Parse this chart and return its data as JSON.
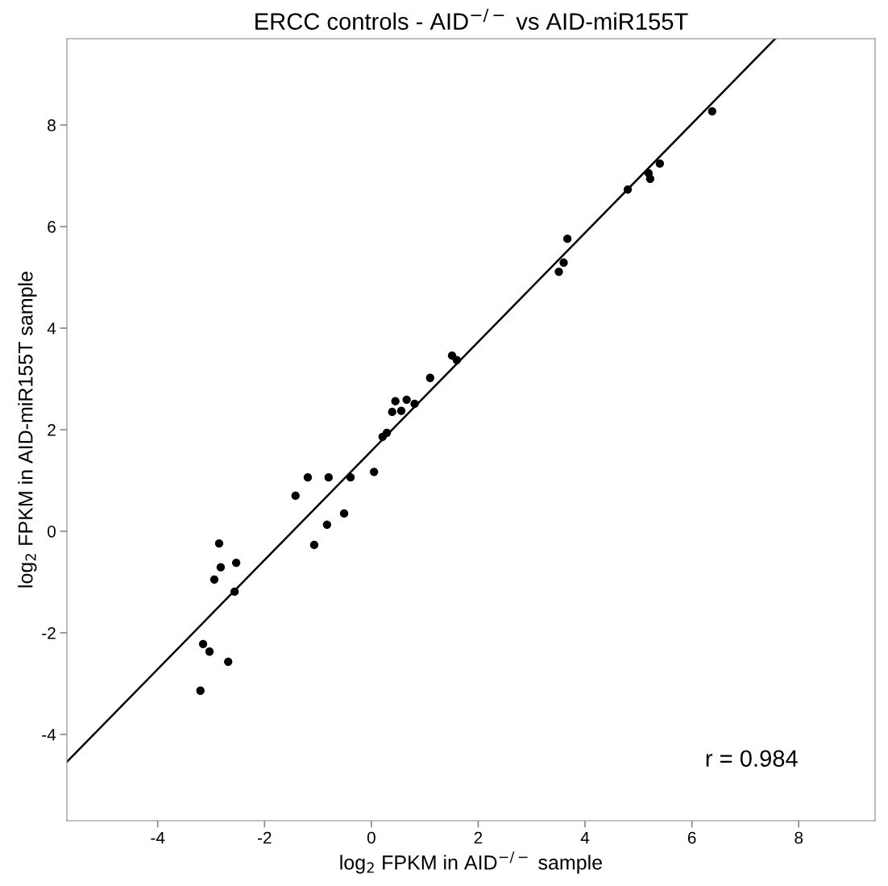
{
  "chart_data": {
    "type": "scatter",
    "title": "ERCC controls - AID$^{−/−}$ vs AID-miR155T",
    "xlabel": "log$_{2}$ FPKM in AID$^{−/−}$ sample",
    "ylabel": "log$_{2}$ FPKM in AID-miR155T sample",
    "xlim": [
      -5.7,
      9.43
    ],
    "ylim": [
      -5.7,
      9.7
    ],
    "xticks": [
      -4,
      -2,
      0,
      2,
      4,
      6,
      8
    ],
    "yticks": [
      -4,
      -2,
      0,
      2,
      4,
      6,
      8
    ],
    "grid": false,
    "annotations": [
      "r = 0.984"
    ],
    "series": [
      {
        "marker": "circle",
        "color": "#000000",
        "x": [
          -3.2,
          -3.15,
          -3.03,
          -2.68,
          -2.94,
          -2.85,
          -2.82,
          -2.53,
          -2.56,
          -1.42,
          -1.19,
          -0.8,
          -1.07,
          -0.83,
          -0.51,
          -0.39,
          0.05,
          0.21,
          0.29,
          0.39,
          0.45,
          0.56,
          0.66,
          0.81,
          1.1,
          1.51,
          1.6,
          3.51,
          3.6,
          3.67,
          4.8,
          5.19,
          5.22,
          5.4,
          6.38
        ],
        "values": [
          -3.14,
          -2.22,
          -2.37,
          -2.57,
          -0.95,
          -0.24,
          -0.71,
          -0.62,
          -1.19,
          0.7,
          1.06,
          1.06,
          -0.27,
          0.13,
          0.35,
          1.06,
          1.17,
          1.86,
          1.94,
          2.35,
          2.56,
          2.37,
          2.59,
          2.51,
          3.02,
          3.46,
          3.37,
          5.11,
          5.29,
          5.76,
          6.73,
          7.05,
          6.94,
          7.24,
          8.27
        ]
      },
      {
        "type": "line",
        "color": "#000000",
        "x": [
          -5.7,
          7.56
        ],
        "values": [
          -4.54,
          9.7
        ]
      }
    ]
  }
}
